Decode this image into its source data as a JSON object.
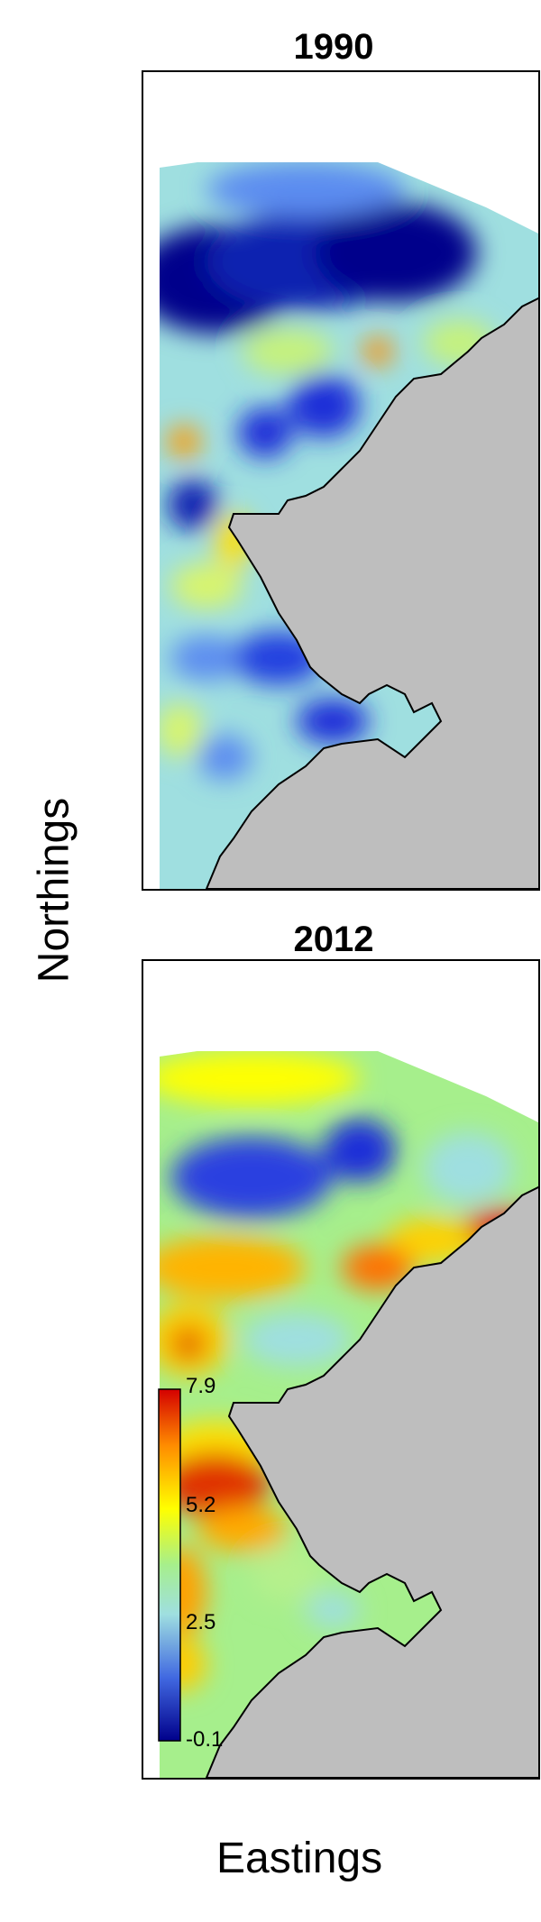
{
  "axes": {
    "ylabel": "Northings",
    "xlabel": "Eastings"
  },
  "panels": [
    {
      "title": "1990"
    },
    {
      "title": "2012"
    }
  ],
  "colorbar": {
    "ticks": [
      "7.9",
      "5.2",
      "2.5",
      "-0.1"
    ],
    "min": -0.1,
    "max": 7.9,
    "colors": [
      "#00008b",
      "#4169e1",
      "#9fdfe0",
      "#a6ef8c",
      "#ffff00",
      "#ff8c00",
      "#d40000"
    ]
  },
  "colors": {
    "land": "#bebebe",
    "coast": "#000000"
  }
}
